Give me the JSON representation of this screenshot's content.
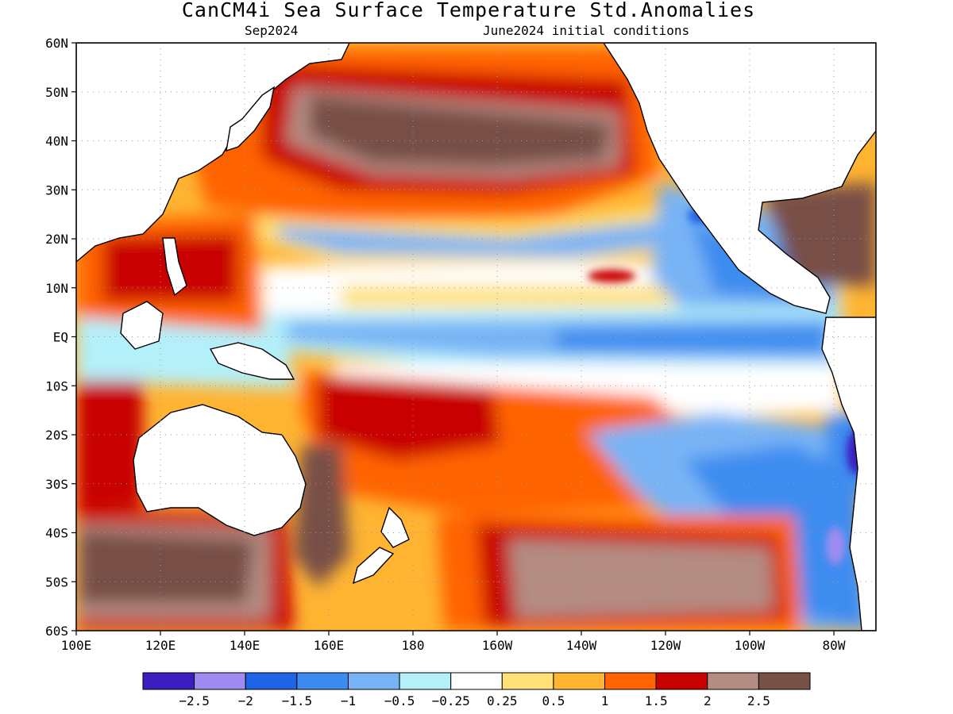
{
  "title": "CanCM4i Sea Surface Temperature Std.Anomalies",
  "subtitle_left": "Sep2024",
  "subtitle_right": "June2024 initial conditions",
  "axes": {
    "lat_labels": [
      "60N",
      "50N",
      "40N",
      "30N",
      "20N",
      "10N",
      "EQ",
      "10S",
      "20S",
      "30S",
      "40S",
      "50S",
      "60S"
    ],
    "lat_values": [
      60,
      50,
      40,
      30,
      20,
      10,
      0,
      -10,
      -20,
      -30,
      -40,
      -50,
      -60
    ],
    "lon_labels": [
      "100E",
      "120E",
      "140E",
      "160E",
      "180",
      "160W",
      "140W",
      "120W",
      "100W",
      "80W"
    ],
    "lon_values": [
      100,
      120,
      140,
      160,
      180,
      200,
      220,
      240,
      260,
      280
    ],
    "lon_range": [
      100,
      290
    ],
    "lat_range": [
      -60,
      60
    ],
    "grid": true
  },
  "colors": {
    "land": "#ffffff",
    "coastline": "#000000",
    "grid": "#999999"
  },
  "colorbar": {
    "colors": [
      "#3c1ec0",
      "#a08cf0",
      "#1e64e6",
      "#3c8cf0",
      "#78b4f5",
      "#b4f0fa",
      "#ffffff",
      "#ffe178",
      "#ffb432",
      "#ff6400",
      "#c80000",
      "#b48c82",
      "#785046"
    ],
    "labels": [
      "−2.5",
      "−2",
      "−1.5",
      "−1",
      "−0.5",
      "−0.25",
      "0.25",
      "0.5",
      "1",
      "1.5",
      "2",
      "2.5"
    ],
    "bounds": [
      -2.5,
      -2,
      -1.5,
      -1,
      -0.5,
      -0.25,
      0.25,
      0.5,
      1,
      1.5,
      2,
      2.5
    ]
  },
  "chart_data": {
    "type": "heatmap",
    "title": "CanCM4i Sea Surface Temperature Std.Anomalies",
    "valid_month": "Sep2024",
    "initial_conditions": "June2024 initial conditions",
    "xlabel": "",
    "ylabel": "",
    "x_range": [
      100,
      290
    ],
    "y_range": [
      -60,
      60
    ],
    "regions": [
      {
        "lon": [
          150,
          250
        ],
        "lat": [
          0,
          60
        ],
        "value": 0.75
      },
      {
        "lon": [
          175,
          225
        ],
        "lat": [
          30,
          48
        ],
        "value": 2.5
      },
      {
        "lon": [
          155,
          250
        ],
        "lat": [
          -15,
          -60
        ],
        "value": 1.5
      },
      {
        "lon": [
          150,
          280
        ],
        "lat": [
          -3,
          5
        ],
        "value": -0.75
      },
      {
        "lon": [
          160,
          210
        ],
        "lat": [
          -10,
          -30
        ],
        "value": 2.0
      },
      {
        "lon": [
          230,
          285
        ],
        "lat": [
          -20,
          -60
        ],
        "value": -0.75
      },
      {
        "lon": [
          280,
          286
        ],
        "lat": [
          -20,
          -30
        ],
        "value": -2.5
      },
      {
        "lon": [
          278,
          284
        ],
        "lat": [
          -40,
          -50
        ],
        "value": -2.0
      },
      {
        "lon": [
          100,
          150
        ],
        "lat": [
          -40,
          -60
        ],
        "value": 2.5
      },
      {
        "lon": [
          160,
          170
        ],
        "lat": [
          -25,
          -45
        ],
        "value": 2.5
      },
      {
        "lon": [
          150,
          170
        ],
        "lat": [
          -45,
          -60
        ],
        "value": 1.5
      },
      {
        "lon": [
          185,
          250
        ],
        "lat": [
          15,
          25
        ],
        "value": -0.75
      },
      {
        "lon": [
          230,
          240
        ],
        "lat": [
          10,
          12
        ],
        "value": 1.5
      },
      {
        "lon": [
          210,
          270
        ],
        "lat": [
          -50,
          -60
        ],
        "value": 2.5
      }
    ]
  }
}
